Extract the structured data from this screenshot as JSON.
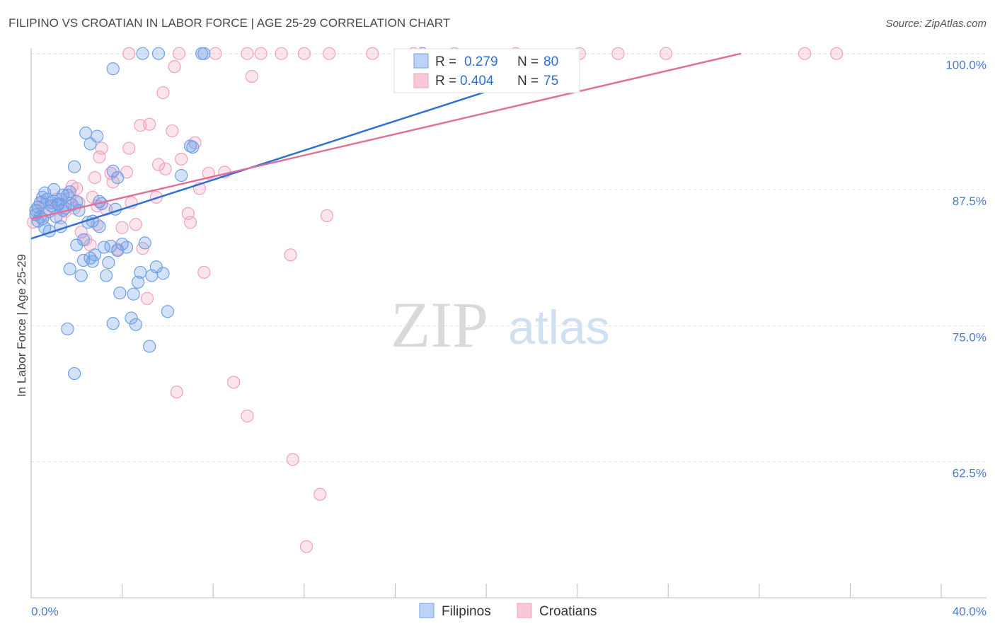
{
  "header": {
    "title": "FILIPINO VS CROATIAN IN LABOR FORCE | AGE 25-29 CORRELATION CHART",
    "source": "Source: ZipAtlas.com"
  },
  "watermark": {
    "zip": "ZIP",
    "atlas": "atlas"
  },
  "legend": {
    "items": [
      {
        "r_label": "R = ",
        "r_value": "0.279",
        "n_label": "N = ",
        "n_value": "80"
      },
      {
        "r_label": "R = ",
        "r_value": "0.404",
        "n_label": "N = ",
        "n_value": "75"
      }
    ]
  },
  "bottom_legend": {
    "filipinos": "Filipinos",
    "croatians": "Croatians"
  },
  "chart_data": {
    "type": "scatter",
    "title": "FILIPINO VS CROATIAN IN LABOR FORCE | AGE 25-29 CORRELATION CHART",
    "xlabel": "",
    "ylabel": "In Labor Force | Age 25-29",
    "xlim": [
      0,
      40
    ],
    "ylim": [
      50,
      100.5
    ],
    "x_tick_labels": [
      "0.0%",
      "40.0%"
    ],
    "y_ticks": [
      62.5,
      75.0,
      87.5,
      100.0
    ],
    "y_tick_labels": [
      "62.5%",
      "75.0%",
      "87.5%",
      "100.0%"
    ],
    "grid": true,
    "colors": {
      "filipinos": "#6fa0e8",
      "croatians": "#f0a0bc",
      "filipinos_line": "#2f6fd6",
      "croatians_line": "#e0709a"
    },
    "series": [
      {
        "name": "Filipinos",
        "R": 0.279,
        "N": 80,
        "trendline": {
          "x": [
            0,
            20
          ],
          "y": [
            83.0,
            96.5
          ]
        },
        "points": [
          [
            0.2,
            85.2
          ],
          [
            0.3,
            85.9
          ],
          [
            0.4,
            86.3
          ],
          [
            0.5,
            84.8
          ],
          [
            0.6,
            87.2
          ],
          [
            0.7,
            86.6
          ],
          [
            0.8,
            85.5
          ],
          [
            0.9,
            86.0
          ],
          [
            0.3,
            84.6
          ],
          [
            0.6,
            84.0
          ],
          [
            1.0,
            87.5
          ],
          [
            1.1,
            85.0
          ],
          [
            1.2,
            86.2
          ],
          [
            1.3,
            84.1
          ],
          [
            1.4,
            87.0
          ],
          [
            1.5,
            85.8
          ],
          [
            1.7,
            87.3
          ],
          [
            1.8,
            86.1
          ],
          [
            1.9,
            89.6
          ],
          [
            2.0,
            82.4
          ],
          [
            2.1,
            85.6
          ],
          [
            2.2,
            79.6
          ],
          [
            2.3,
            81.0
          ],
          [
            2.4,
            92.7
          ],
          [
            2.5,
            84.5
          ],
          [
            2.6,
            91.7
          ],
          [
            2.7,
            80.9
          ],
          [
            2.8,
            81.5
          ],
          [
            2.9,
            92.4
          ],
          [
            3.0,
            84.1
          ],
          [
            3.1,
            86.2
          ],
          [
            3.2,
            82.2
          ],
          [
            3.3,
            79.6
          ],
          [
            3.4,
            80.8
          ],
          [
            3.5,
            82.3
          ],
          [
            3.6,
            89.2
          ],
          [
            3.7,
            85.7
          ],
          [
            3.8,
            81.9
          ],
          [
            3.9,
            78.0
          ],
          [
            4.0,
            82.5
          ],
          [
            4.2,
            82.2
          ],
          [
            4.4,
            75.7
          ],
          [
            4.6,
            75.1
          ],
          [
            4.7,
            79.0
          ],
          [
            4.8,
            79.9
          ],
          [
            5.0,
            82.6
          ],
          [
            5.2,
            73.1
          ],
          [
            5.3,
            79.6
          ],
          [
            5.5,
            80.4
          ],
          [
            5.8,
            79.8
          ],
          [
            6.0,
            76.3
          ],
          [
            6.6,
            88.8
          ],
          [
            7.0,
            91.5
          ],
          [
            7.5,
            100.0
          ],
          [
            3.6,
            75.2
          ],
          [
            4.5,
            77.9
          ],
          [
            1.6,
            74.7
          ],
          [
            1.9,
            70.6
          ],
          [
            0.4,
            85.0
          ],
          [
            0.9,
            86.3
          ],
          [
            1.4,
            85.6
          ],
          [
            2.0,
            86.4
          ],
          [
            2.7,
            84.6
          ],
          [
            4.9,
            100.0
          ],
          [
            5.6,
            100.0
          ],
          [
            7.6,
            100.0
          ],
          [
            3.6,
            98.6
          ],
          [
            7.1,
            91.4
          ],
          [
            1.2,
            86.1
          ],
          [
            1.7,
            80.2
          ],
          [
            0.5,
            86.8
          ],
          [
            1.3,
            86.6
          ],
          [
            2.3,
            82.9
          ],
          [
            2.6,
            81.2
          ],
          [
            3.0,
            86.4
          ],
          [
            3.8,
            88.6
          ],
          [
            0.8,
            83.7
          ],
          [
            1.6,
            87.0
          ],
          [
            0.2,
            85.6
          ],
          [
            17.2,
            100.0
          ]
        ]
      },
      {
        "name": "Croatians",
        "R": 0.404,
        "N": 75,
        "trendline": {
          "x": [
            0,
            31.2
          ],
          "y": [
            84.8,
            100.0
          ]
        },
        "points": [
          [
            0.1,
            84.5
          ],
          [
            0.3,
            85.6
          ],
          [
            0.5,
            86.4
          ],
          [
            0.6,
            85.2
          ],
          [
            0.9,
            86.0
          ],
          [
            1.1,
            86.6
          ],
          [
            1.3,
            84.9
          ],
          [
            1.5,
            85.5
          ],
          [
            1.7,
            86.7
          ],
          [
            1.8,
            87.8
          ],
          [
            2.0,
            87.6
          ],
          [
            2.1,
            86.3
          ],
          [
            2.2,
            83.6
          ],
          [
            2.4,
            82.9
          ],
          [
            2.6,
            82.4
          ],
          [
            2.7,
            86.8
          ],
          [
            2.8,
            88.6
          ],
          [
            2.9,
            86.0
          ],
          [
            3.0,
            90.5
          ],
          [
            3.1,
            91.3
          ],
          [
            3.3,
            85.7
          ],
          [
            3.5,
            89.0
          ],
          [
            3.6,
            88.2
          ],
          [
            3.8,
            82.0
          ],
          [
            4.0,
            84.0
          ],
          [
            4.2,
            89.1
          ],
          [
            4.3,
            91.3
          ],
          [
            4.4,
            86.3
          ],
          [
            4.6,
            84.3
          ],
          [
            4.8,
            93.4
          ],
          [
            4.9,
            82.1
          ],
          [
            5.1,
            77.5
          ],
          [
            5.2,
            93.5
          ],
          [
            5.5,
            86.8
          ],
          [
            5.6,
            89.8
          ],
          [
            5.8,
            96.4
          ],
          [
            5.9,
            89.4
          ],
          [
            6.2,
            92.9
          ],
          [
            6.3,
            98.8
          ],
          [
            6.6,
            90.3
          ],
          [
            6.9,
            85.3
          ],
          [
            7.0,
            84.5
          ],
          [
            7.2,
            91.8
          ],
          [
            7.4,
            87.6
          ],
          [
            7.6,
            79.9
          ],
          [
            7.8,
            89.0
          ],
          [
            8.5,
            89.1
          ],
          [
            8.9,
            69.8
          ],
          [
            9.5,
            100.0
          ],
          [
            9.5,
            66.7
          ],
          [
            9.7,
            97.9
          ],
          [
            10.1,
            100.0
          ],
          [
            11.4,
            81.5
          ],
          [
            11.5,
            62.7
          ],
          [
            12.0,
            100.0
          ],
          [
            12.7,
            59.5
          ],
          [
            13.1,
            100.0
          ],
          [
            13.0,
            85.1
          ],
          [
            15.0,
            100.0
          ],
          [
            16.8,
            100.0
          ],
          [
            18.6,
            100.0
          ],
          [
            21.3,
            100.0
          ],
          [
            24.1,
            100.0
          ],
          [
            25.8,
            100.0
          ],
          [
            27.9,
            100.0
          ],
          [
            34.0,
            100.0
          ],
          [
            12.1,
            54.7
          ],
          [
            6.4,
            68.9
          ],
          [
            8.1,
            100.0
          ],
          [
            6.5,
            100.0
          ],
          [
            1.9,
            85.8
          ],
          [
            2.9,
            84.3
          ],
          [
            4.3,
            100.0
          ],
          [
            11.0,
            100.0
          ],
          [
            35.4,
            100.0
          ]
        ]
      }
    ]
  }
}
